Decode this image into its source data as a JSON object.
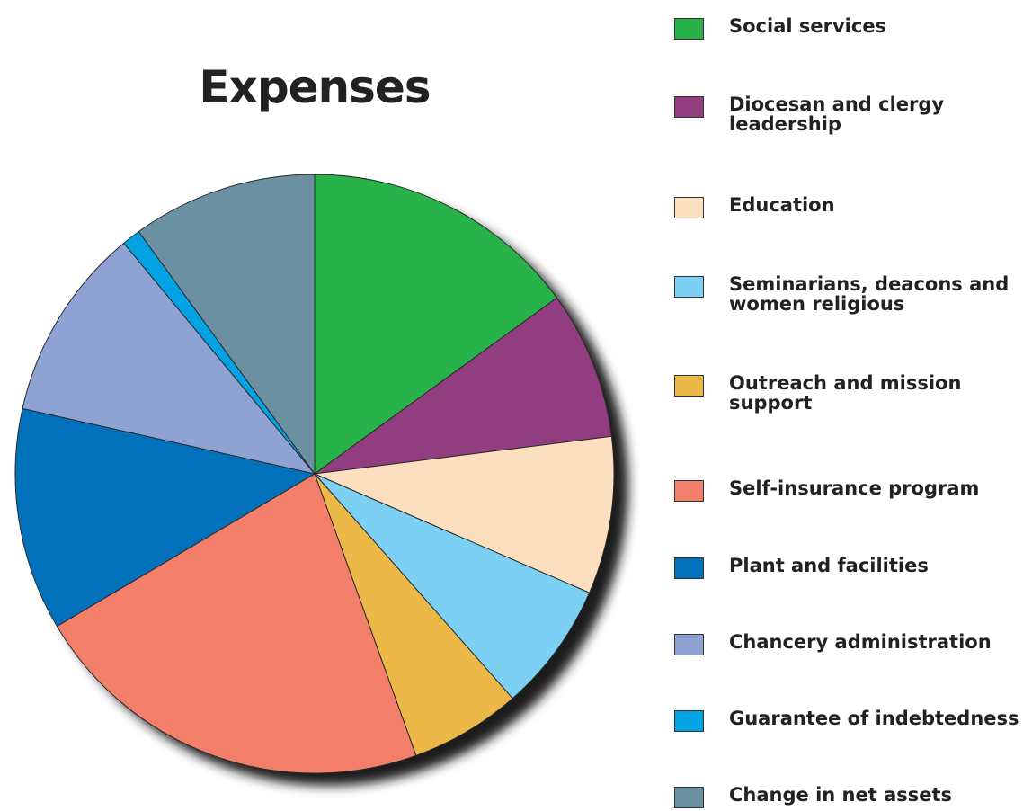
{
  "chart_data": {
    "type": "pie",
    "title": "Expenses",
    "legend_position": "right",
    "slices": [
      {
        "label": "Social services",
        "value": 15.0,
        "color": "#27b24a"
      },
      {
        "label": "Diocesan and clergy leadership",
        "value": 8.0,
        "color": "#913d80"
      },
      {
        "label": "Education",
        "value": 8.5,
        "color": "#fcdfbf"
      },
      {
        "label": "Seminarians, deacons and women religious",
        "value": 7.0,
        "color": "#7bd0f4"
      },
      {
        "label": "Outreach and mission support",
        "value": 6.0,
        "color": "#ecb848"
      },
      {
        "label": "Self-insurance program",
        "value": 22.0,
        "color": "#f37e69"
      },
      {
        "label": "Plant and facilities",
        "value": 12.0,
        "color": "#0171bb"
      },
      {
        "label": "Chancery administration",
        "value": 10.5,
        "color": "#8ea3d3"
      },
      {
        "label": "Guarantee of indebtedness",
        "value": 1.0,
        "color": "#02a3e4"
      },
      {
        "label": "Change in net assets",
        "value": 10.0,
        "color": "#6a90a2"
      }
    ]
  }
}
